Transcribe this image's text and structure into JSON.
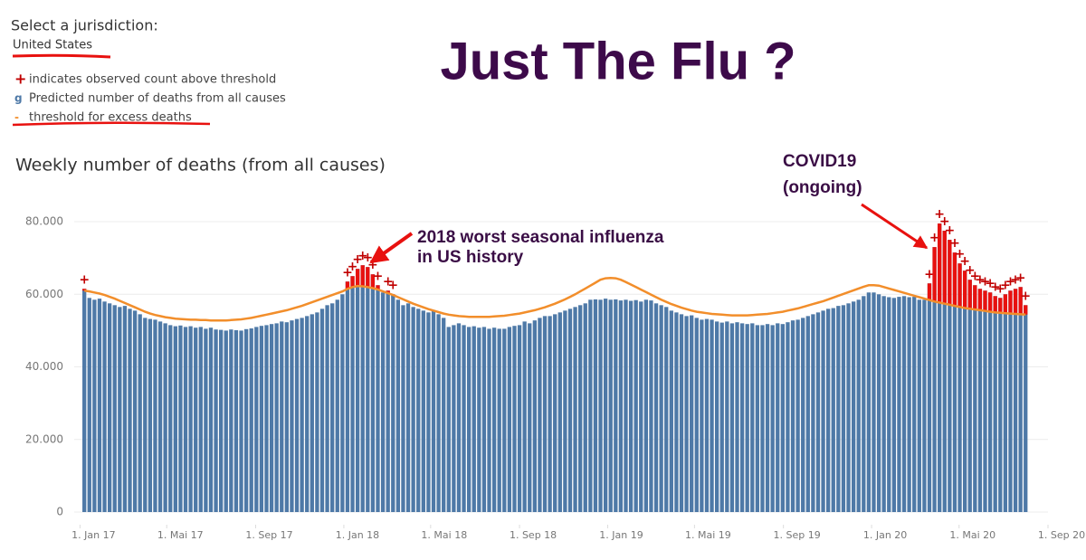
{
  "header": {
    "select_label": "Select a jurisdiction:",
    "jurisdiction": "United States",
    "headline": "Just The Flu ?"
  },
  "annotations": [
    {
      "lines": [
        "2018 worst seasonal influenza",
        "in US history"
      ]
    },
    {
      "lines": [
        "COVID19",
        "(ongoing)"
      ]
    }
  ],
  "chart_data": {
    "type": "bar",
    "title": "Weekly number of deaths (from all causes)",
    "grid": true,
    "flag": {
      "name": "indicates observed count above threshold",
      "marker": "+",
      "color": "#c00000"
    },
    "excess_color": "#e8110f",
    "x": [
      "2017-01-07",
      "2017-01-14",
      "2017-01-21",
      "2017-01-28",
      "2017-02-04",
      "2017-02-11",
      "2017-02-18",
      "2017-02-25",
      "2017-03-04",
      "2017-03-11",
      "2017-03-18",
      "2017-03-25",
      "2017-04-01",
      "2017-04-08",
      "2017-04-15",
      "2017-04-22",
      "2017-04-29",
      "2017-05-06",
      "2017-05-13",
      "2017-05-20",
      "2017-05-27",
      "2017-06-03",
      "2017-06-10",
      "2017-06-17",
      "2017-06-24",
      "2017-07-01",
      "2017-07-08",
      "2017-07-15",
      "2017-07-22",
      "2017-07-29",
      "2017-08-05",
      "2017-08-12",
      "2017-08-19",
      "2017-08-26",
      "2017-09-02",
      "2017-09-09",
      "2017-09-16",
      "2017-09-23",
      "2017-09-30",
      "2017-10-07",
      "2017-10-14",
      "2017-10-21",
      "2017-10-28",
      "2017-11-04",
      "2017-11-11",
      "2017-11-18",
      "2017-11-25",
      "2017-12-02",
      "2017-12-09",
      "2017-12-16",
      "2017-12-23",
      "2017-12-30",
      "2018-01-06",
      "2018-01-13",
      "2018-01-20",
      "2018-01-27",
      "2018-02-03",
      "2018-02-10",
      "2018-02-17",
      "2018-02-24",
      "2018-03-03",
      "2018-03-10",
      "2018-03-17",
      "2018-03-24",
      "2018-03-31",
      "2018-04-07",
      "2018-04-14",
      "2018-04-21",
      "2018-04-28",
      "2018-05-05",
      "2018-05-12",
      "2018-05-19",
      "2018-05-26",
      "2018-06-02",
      "2018-06-09",
      "2018-06-16",
      "2018-06-23",
      "2018-06-30",
      "2018-07-07",
      "2018-07-14",
      "2018-07-21",
      "2018-07-28",
      "2018-08-04",
      "2018-08-11",
      "2018-08-18",
      "2018-08-25",
      "2018-09-01",
      "2018-09-08",
      "2018-09-15",
      "2018-09-22",
      "2018-09-29",
      "2018-10-06",
      "2018-10-13",
      "2018-10-20",
      "2018-10-27",
      "2018-11-03",
      "2018-11-10",
      "2018-11-17",
      "2018-11-24",
      "2018-12-01",
      "2018-12-08",
      "2018-12-15",
      "2018-12-22",
      "2018-12-29",
      "2019-01-05",
      "2019-01-12",
      "2019-01-19",
      "2019-01-26",
      "2019-02-02",
      "2019-02-09",
      "2019-02-16",
      "2019-02-23",
      "2019-03-02",
      "2019-03-09",
      "2019-03-16",
      "2019-03-23",
      "2019-03-30",
      "2019-04-06",
      "2019-04-13",
      "2019-04-20",
      "2019-04-27",
      "2019-05-04",
      "2019-05-11",
      "2019-05-18",
      "2019-05-25",
      "2019-06-01",
      "2019-06-08",
      "2019-06-15",
      "2019-06-22",
      "2019-06-29",
      "2019-07-06",
      "2019-07-13",
      "2019-07-20",
      "2019-07-27",
      "2019-08-03",
      "2019-08-10",
      "2019-08-17",
      "2019-08-24",
      "2019-08-31",
      "2019-09-07",
      "2019-09-14",
      "2019-09-21",
      "2019-09-28",
      "2019-10-05",
      "2019-10-12",
      "2019-10-19",
      "2019-10-26",
      "2019-11-02",
      "2019-11-09",
      "2019-11-16",
      "2019-11-23",
      "2019-11-30",
      "2019-12-07",
      "2019-12-14",
      "2019-12-21",
      "2019-12-28",
      "2020-01-04",
      "2020-01-11",
      "2020-01-18",
      "2020-01-25",
      "2020-02-01",
      "2020-02-08",
      "2020-02-15",
      "2020-02-22",
      "2020-02-29",
      "2020-03-07",
      "2020-03-14",
      "2020-03-21",
      "2020-03-28",
      "2020-04-04",
      "2020-04-11",
      "2020-04-18",
      "2020-04-25",
      "2020-05-02",
      "2020-05-09",
      "2020-05-16",
      "2020-05-23",
      "2020-05-30",
      "2020-06-06",
      "2020-06-13",
      "2020-06-20",
      "2020-06-27",
      "2020-07-04",
      "2020-07-11",
      "2020-07-18",
      "2020-07-25",
      "2020-08-01"
    ],
    "series": [
      {
        "name": "Predicted number of deaths from all causes",
        "marker": "g",
        "color": "#4e79a7",
        "values": [
          61500,
          59000,
          58500,
          58800,
          58000,
          57500,
          57000,
          56500,
          56800,
          56000,
          55500,
          54500,
          53500,
          53200,
          53000,
          52500,
          52000,
          51500,
          51200,
          51400,
          51000,
          51200,
          50800,
          51000,
          50500,
          50800,
          50300,
          50200,
          50000,
          50300,
          50100,
          50000,
          50400,
          50600,
          51000,
          51300,
          51500,
          51800,
          52000,
          52500,
          52300,
          52800,
          53200,
          53500,
          54000,
          54500,
          55000,
          56000,
          57000,
          57500,
          58500,
          60000,
          63500,
          65000,
          67000,
          68000,
          67500,
          65500,
          62500,
          60500,
          61000,
          60000,
          58500,
          57000,
          57500,
          56500,
          56000,
          55500,
          55000,
          55500,
          54500,
          53500,
          51000,
          51500,
          52000,
          51500,
          51000,
          51200,
          50800,
          51000,
          50500,
          50800,
          50500,
          50500,
          51000,
          51300,
          51500,
          52500,
          52000,
          52800,
          53500,
          54000,
          54000,
          54500,
          55000,
          55500,
          56000,
          56500,
          57000,
          57500,
          58500,
          58600,
          58500,
          58800,
          58500,
          58600,
          58300,
          58500,
          58200,
          58400,
          58000,
          58500,
          58300,
          57500,
          57000,
          56500,
          55500,
          55000,
          54500,
          54000,
          54200,
          53500,
          53000,
          53200,
          53000,
          52500,
          52200,
          52500,
          52000,
          52300,
          52000,
          51800,
          52000,
          51500,
          51500,
          51800,
          51500,
          52000,
          51800,
          52300,
          52800,
          53000,
          53500,
          54000,
          54500,
          55000,
          55500,
          56000,
          56200,
          56800,
          57000,
          57500,
          58000,
          58500,
          59500,
          60500,
          60500,
          60000,
          59500,
          59200,
          59000,
          59300,
          59500,
          59200,
          59300,
          58500,
          58500,
          63000,
          73000,
          79500,
          77500,
          75000,
          71500,
          68500,
          66500,
          64000,
          62500,
          61500,
          61000,
          60500,
          59500,
          59000,
          60000,
          61000,
          61500,
          62000,
          57000
        ]
      },
      {
        "name": "threshold for excess deaths",
        "marker": "-",
        "color": "#f28e2b",
        "values": [
          61000,
          60800,
          60500,
          60200,
          59800,
          59300,
          58800,
          58200,
          57600,
          57000,
          56400,
          55800,
          55200,
          54700,
          54300,
          54000,
          53700,
          53500,
          53300,
          53200,
          53100,
          53000,
          53000,
          52900,
          52900,
          52800,
          52800,
          52800,
          52800,
          52900,
          53000,
          53100,
          53300,
          53500,
          53800,
          54100,
          54400,
          54700,
          55000,
          55300,
          55600,
          56000,
          56400,
          56800,
          57300,
          57800,
          58300,
          58800,
          59300,
          59800,
          60300,
          60800,
          61500,
          62000,
          62300,
          62200,
          62000,
          61700,
          61300,
          60800,
          60300,
          59800,
          59200,
          58600,
          58000,
          57400,
          56900,
          56400,
          55900,
          55500,
          55100,
          54700,
          54400,
          54200,
          54000,
          53900,
          53800,
          53800,
          53800,
          53800,
          53800,
          53900,
          54000,
          54100,
          54300,
          54500,
          54700,
          55000,
          55300,
          55600,
          56000,
          56400,
          56900,
          57400,
          58000,
          58600,
          59300,
          60000,
          60800,
          61600,
          62400,
          63200,
          64000,
          64400,
          64500,
          64400,
          64000,
          63400,
          62700,
          62000,
          61300,
          60600,
          59900,
          59200,
          58500,
          57900,
          57300,
          56800,
          56300,
          55900,
          55500,
          55200,
          55000,
          54800,
          54600,
          54500,
          54400,
          54300,
          54200,
          54200,
          54200,
          54200,
          54300,
          54400,
          54500,
          54600,
          54800,
          55000,
          55200,
          55500,
          55800,
          56100,
          56500,
          56900,
          57300,
          57700,
          58100,
          58600,
          59100,
          59600,
          60100,
          60600,
          61100,
          61600,
          62100,
          62500,
          62500,
          62400,
          62000,
          61600,
          61200,
          60800,
          60400,
          60000,
          59600,
          59200,
          58800,
          58400,
          58000,
          57700,
          57400,
          57100,
          56800,
          56500,
          56200,
          56000,
          55800,
          55600,
          55400,
          55200,
          55000,
          54900,
          54800,
          54700,
          54600,
          54500,
          54400
        ]
      }
    ],
    "ylim": [
      0,
      85000
    ],
    "yticks": [
      0,
      {
        "value": 20000,
        "label": "20.000"
      },
      {
        "value": 40000,
        "label": "40.000"
      },
      {
        "value": 60000,
        "label": "60.000"
      },
      {
        "value": 80000,
        "label": "80.000"
      }
    ],
    "xlim": [
      "2016-12-24",
      "2020-09-01"
    ],
    "xticks": [
      {
        "value": "2017-01-01",
        "label": "1. Jan 17"
      },
      {
        "value": "2017-05-01",
        "label": "1. Mai 17"
      },
      {
        "value": "2017-09-01",
        "label": "1. Sep 17"
      },
      {
        "value": "2018-01-01",
        "label": "1. Jan 18"
      },
      {
        "value": "2018-05-01",
        "label": "1. Mai 18"
      },
      {
        "value": "2018-09-01",
        "label": "1. Sep 18"
      },
      {
        "value": "2019-01-01",
        "label": "1. Jan 19"
      },
      {
        "value": "2019-05-01",
        "label": "1. Mai 19"
      },
      {
        "value": "2019-09-01",
        "label": "1. Sep 19"
      },
      {
        "value": "2020-01-01",
        "label": "1. Jan 20"
      },
      {
        "value": "2020-05-01",
        "label": "1. Mai 20"
      },
      {
        "value": "2020-09-01",
        "label": "1. Sep 20"
      }
    ]
  }
}
